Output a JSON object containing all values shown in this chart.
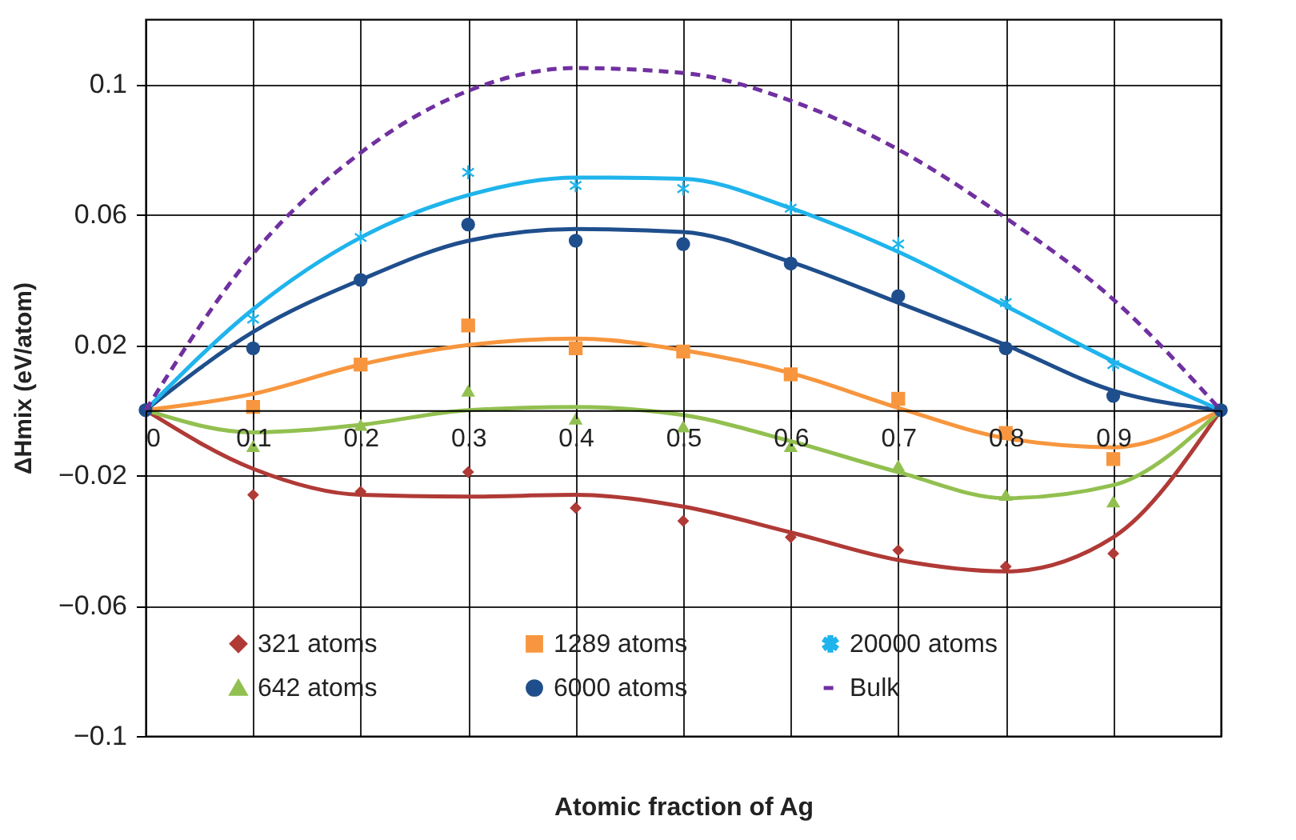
{
  "chart_data": {
    "type": "scatter",
    "xlabel": "Atomic fraction of Ag",
    "ylabel": "ΔHmix (eV/atom)",
    "x": [
      0,
      0.1,
      0.2,
      0.3,
      0.4,
      0.5,
      0.6,
      0.7,
      0.8,
      0.9,
      1
    ],
    "xlim": [
      0,
      1
    ],
    "xticks": [
      0,
      0.1,
      0.2,
      0.3,
      0.4,
      0.5,
      0.6,
      0.7,
      0.8,
      0.9,
      {
        "value": 1,
        "label": null
      }
    ],
    "ylim": [
      -0.1,
      0.12
    ],
    "yticks": [
      -0.1,
      -0.06,
      -0.02,
      0.02,
      0.06,
      0.1
    ],
    "grid": true,
    "legend": "bottom",
    "series": [
      {
        "type": "line",
        "marker": "none",
        "color": "#b03a36",
        "values": [
          0,
          -0.018,
          -0.026,
          -0.0265,
          -0.026,
          -0.0296,
          -0.0375,
          -0.046,
          -0.0495,
          -0.039,
          0
        ]
      },
      {
        "type": "line",
        "marker": "none",
        "color": "#92c050",
        "values": [
          0,
          -0.0068,
          -0.0045,
          0,
          0.001,
          -0.0015,
          -0.0095,
          -0.019,
          -0.027,
          -0.023,
          0
        ]
      },
      {
        "type": "line",
        "marker": "none",
        "color": "#f7963e",
        "values": [
          0,
          0.005,
          0.014,
          0.02,
          0.022,
          0.0184,
          0.0114,
          0.0007,
          -0.0086,
          -0.0114,
          0
        ]
      },
      {
        "type": "line",
        "marker": "none",
        "color": "#1f4e8c",
        "values": [
          0,
          0.024,
          0.04,
          0.052,
          0.0556,
          0.0547,
          0.0455,
          0.033,
          0.02,
          0.006,
          0
        ]
      },
      {
        "type": "line",
        "marker": "none",
        "color": "#1fb4ec",
        "values": [
          0,
          0.031,
          0.053,
          0.066,
          0.0714,
          0.071,
          0.062,
          0.0486,
          0.032,
          0.015,
          0
        ]
      },
      {
        "name": "321 atoms",
        "marker": "diamond",
        "color": "#b03a36",
        "values": [
          null,
          -0.026,
          -0.025,
          -0.019,
          -0.03,
          -0.034,
          -0.039,
          -0.043,
          -0.048,
          -0.044,
          null
        ]
      },
      {
        "name": "642 atoms",
        "marker": "triangle",
        "color": "#92c050",
        "values": [
          null,
          -0.011,
          -0.0045,
          0.006,
          -0.0026,
          -0.005,
          -0.011,
          -0.017,
          -0.026,
          -0.028,
          null
        ]
      },
      {
        "name": "1289 atoms",
        "marker": "square",
        "color": "#f7963e",
        "values": [
          null,
          0.001,
          0.014,
          0.026,
          0.019,
          0.018,
          0.011,
          0.0035,
          -0.007,
          -0.015,
          null
        ]
      },
      {
        "name": "6000 atoms",
        "marker": "circle",
        "color": "#1f4e8c",
        "values": [
          0,
          0.019,
          0.04,
          0.057,
          0.052,
          0.051,
          0.045,
          0.035,
          0.019,
          0.0044,
          0
        ]
      },
      {
        "name": "20000 atoms",
        "marker": "cross",
        "color": "#1fb4ec",
        "values": [
          null,
          0.028,
          0.053,
          0.073,
          0.069,
          0.068,
          0.062,
          0.051,
          0.033,
          0.014,
          null
        ]
      },
      {
        "type": "line",
        "name": "Bulk",
        "marker": "none",
        "line_style": "dashed",
        "color": "#7030a0",
        "values": [
          0,
          0.048,
          0.079,
          0.098,
          0.105,
          0.1035,
          0.095,
          0.08,
          0.059,
          0.034,
          0
        ]
      }
    ]
  }
}
